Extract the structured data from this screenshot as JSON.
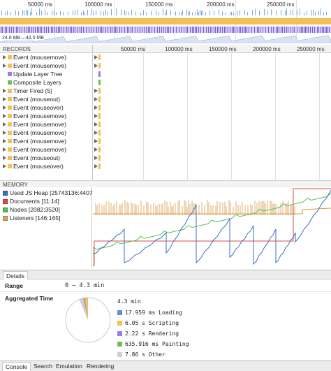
{
  "overview": {
    "ticks": [
      "50000 ms",
      "100000 ms",
      "150000 ms",
      "200000 ms",
      "250000 ms"
    ],
    "heap_label": "24.6 MB – 42.0 MB"
  },
  "records": {
    "header": "RECORDS",
    "items": [
      {
        "label": "Event (mousemove)",
        "color": "#f2c054",
        "expandable": true
      },
      {
        "label": "Event (mousemove)",
        "color": "#f2c054",
        "expandable": true
      },
      {
        "label": "Update Layer Tree",
        "color": "#9a7de6",
        "expandable": false
      },
      {
        "label": "Composite Layers",
        "color": "#6fbd5e",
        "expandable": false
      },
      {
        "label": "Timer Fired (5)",
        "color": "#f2c054",
        "expandable": true
      },
      {
        "label": "Event (mouseout)",
        "color": "#f2c054",
        "expandable": true
      },
      {
        "label": "Event (mouseover)",
        "color": "#f2c054",
        "expandable": true
      },
      {
        "label": "Event (mousemove)",
        "color": "#f2c054",
        "expandable": true
      },
      {
        "label": "Event (mousemove)",
        "color": "#f2c054",
        "expandable": true
      },
      {
        "label": "Event (mousemove)",
        "color": "#f2c054",
        "expandable": true
      },
      {
        "label": "Event (mousemove)",
        "color": "#f2c054",
        "expandable": true
      },
      {
        "label": "Event (mousemove)",
        "color": "#f2c054",
        "expandable": true
      },
      {
        "label": "Event (mouseout)",
        "color": "#f2c054",
        "expandable": true
      },
      {
        "label": "Event (mouseover)",
        "color": "#f2c054",
        "expandable": true
      }
    ]
  },
  "timeline": {
    "ticks": [
      "50000 ms",
      "100000 ms",
      "150000 ms",
      "200000 ms",
      "250000 ms"
    ]
  },
  "memory": {
    "header": "MEMORY",
    "counters": [
      {
        "label": "Used JS Heap [25743136:4407",
        "color": "#3a6fc4"
      },
      {
        "label": "Documents [11:14]",
        "color": "#e04a4a"
      },
      {
        "label": "Nodes [2082:3520]",
        "color": "#4ec24e"
      },
      {
        "label": "Listeners [146:165]",
        "color": "#d9a35f"
      }
    ]
  },
  "details": {
    "tab_label": "Details",
    "range_key": "Range",
    "range_value": "0 – 4.3 min",
    "aggregated_key": "Aggregated Time",
    "total": "4.3 min",
    "categories": [
      {
        "label": "17.959 ms Loading",
        "color": "#5f8fd8"
      },
      {
        "label": "6.05 s Scripting",
        "color": "#f2c054"
      },
      {
        "label": "2.22 s Rendering",
        "color": "#9a7de6"
      },
      {
        "label": "635.916 ms Painting",
        "color": "#6fbd5e"
      },
      {
        "label": "7.86 s Other",
        "color": "#cfcfcf"
      }
    ],
    "pie_seconds": {
      "Loading": 0.018,
      "Scripting": 6.05,
      "Rendering": 2.22,
      "Painting": 0.636,
      "Other": 7.86,
      "Idle": 241.2
    }
  },
  "drawer": {
    "tabs": [
      "Console",
      "Search",
      "Emulation",
      "Rendering"
    ]
  }
}
